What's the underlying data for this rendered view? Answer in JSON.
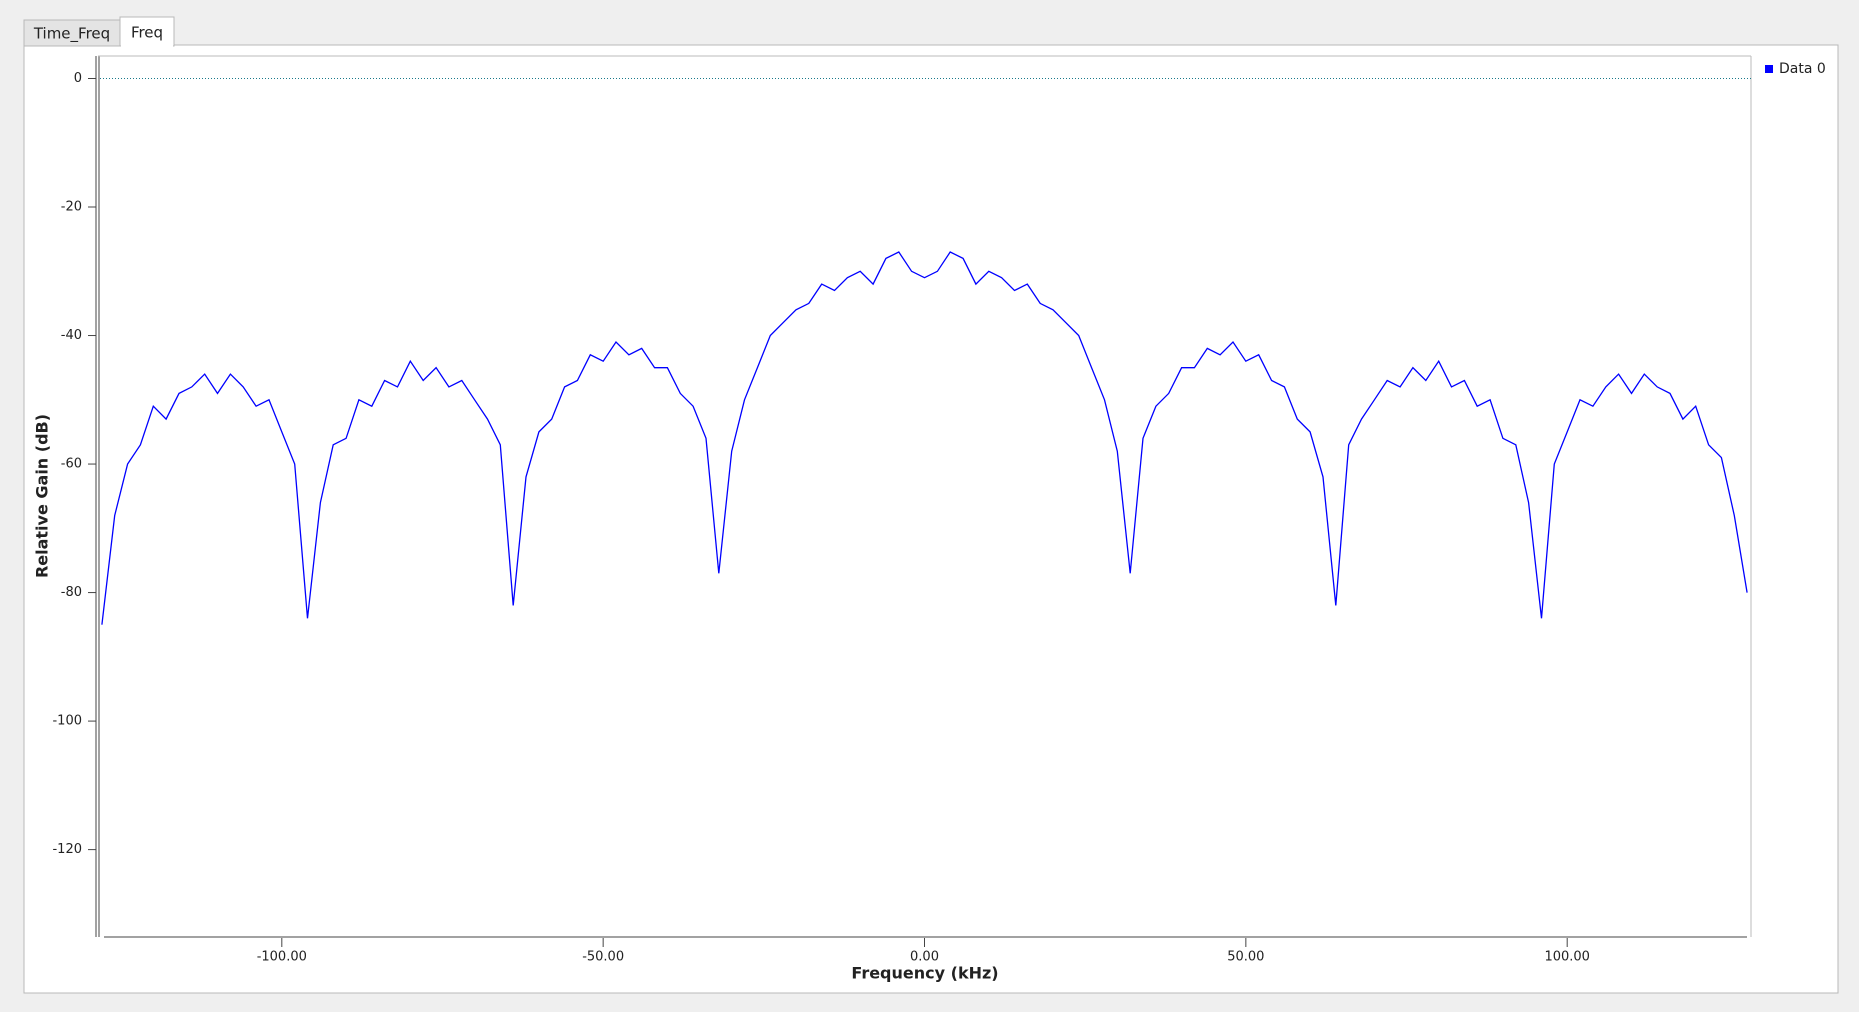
{
  "tabs": [
    "Time_Freq",
    "Freq"
  ],
  "chart_data": {
    "type": "line",
    "xlabel": "Frequency (kHz)",
    "ylabel": "Relative Gain (dB)",
    "x": [
      -128,
      -126,
      -124,
      -122,
      -120,
      -118,
      -116,
      -114,
      -112,
      -110,
      -108,
      -106,
      -104,
      -102,
      -100,
      -98,
      -96,
      -94,
      -92,
      -90,
      -88,
      -86,
      -84,
      -82,
      -80,
      -78,
      -76,
      -74,
      -72,
      -70,
      -68,
      -66,
      -64,
      -62,
      -60,
      -58,
      -56,
      -54,
      -52,
      -50,
      -48,
      -46,
      -44,
      -42,
      -40,
      -38,
      -36,
      -34,
      -32,
      -30,
      -28,
      -26,
      -24,
      -22,
      -20,
      -18,
      -16,
      -14,
      -12,
      -10,
      -8,
      -6,
      -4,
      -2,
      0,
      2,
      4,
      6,
      8,
      10,
      12,
      14,
      16,
      18,
      20,
      22,
      24,
      26,
      28,
      30,
      32,
      34,
      36,
      38,
      40,
      42,
      44,
      46,
      48,
      50,
      52,
      54,
      56,
      58,
      60,
      62,
      64,
      66,
      68,
      70,
      72,
      74,
      76,
      78,
      80,
      82,
      84,
      86,
      88,
      90,
      92,
      94,
      96,
      98,
      100,
      102,
      104,
      106,
      108,
      110,
      112,
      114,
      116,
      118,
      120,
      122,
      124,
      126,
      128
    ],
    "series": [
      {
        "name": "Data 0",
        "color": "#0000ff",
        "values": [
          -85,
          -68,
          -60,
          -57,
          -51,
          -53,
          -49,
          -48,
          -46,
          -49,
          -46,
          -48,
          -51,
          -50,
          -55,
          -60,
          -84,
          -66,
          -57,
          -56,
          -50,
          -51,
          -47,
          -48,
          -44,
          -47,
          -45,
          -48,
          -47,
          -50,
          -53,
          -57,
          -82,
          -62,
          -55,
          -53,
          -48,
          -47,
          -43,
          -44,
          -41,
          -43,
          -42,
          -45,
          -45,
          -49,
          -51,
          -56,
          -77,
          -58,
          -50,
          -45,
          -40,
          -38,
          -36,
          -35,
          -32,
          -33,
          -31,
          -30,
          -32,
          -28,
          -27,
          -30,
          -31,
          -30,
          -27,
          -28,
          -32,
          -30,
          -31,
          -33,
          -32,
          -35,
          -36,
          -38,
          -40,
          -45,
          -50,
          -58,
          -77,
          -56,
          -51,
          -49,
          -45,
          -45,
          -42,
          -43,
          -41,
          -44,
          -43,
          -47,
          -48,
          -53,
          -55,
          -62,
          -82,
          -57,
          -53,
          -50,
          -47,
          -48,
          -45,
          -47,
          -44,
          -48,
          -47,
          -51,
          -50,
          -56,
          -57,
          -66,
          -84,
          -60,
          -55,
          -50,
          -51,
          -48,
          -46,
          -49,
          -46,
          -48,
          -49,
          -53,
          -51,
          -57,
          -59,
          -68,
          -80
        ]
      }
    ],
    "xlim": [
      -128.6,
      128.6
    ],
    "ylim": [
      -133.6,
      3.5
    ],
    "xticks": [
      {
        "value": -100,
        "label": "-100.00"
      },
      {
        "value": -50,
        "label": "-50.00"
      },
      {
        "value": 0,
        "label": "0.00"
      },
      {
        "value": 50,
        "label": "50.00"
      },
      {
        "value": 100,
        "label": "100.00"
      }
    ],
    "yticks": [
      0,
      -20,
      -40,
      -60,
      -80,
      -100,
      -120
    ],
    "legend": "upper right"
  }
}
